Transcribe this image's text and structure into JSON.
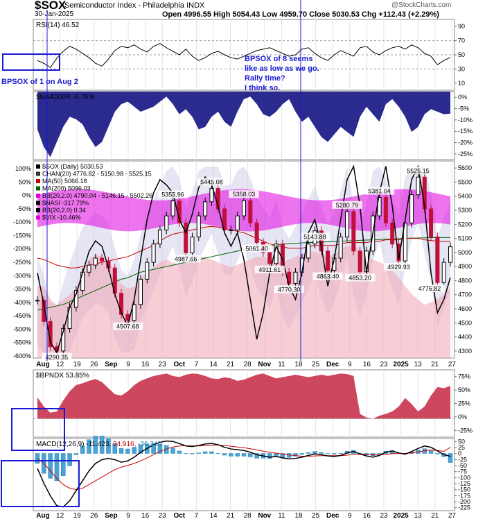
{
  "header": {
    "symbol": "$SOX",
    "name": "Semiconductor Index - Philadelphia INDX",
    "date": "30-Jan-2025",
    "quote": "Open 4996.55   High 5054.43   Low 4959.70   Close 5030.53   Chg +112.43 (+2.29%)",
    "credit": "@StockCharts.com"
  },
  "colors": {
    "rsi_line": "#000000",
    "breadth_fill": "#2b2b8f",
    "bollinger_fill": "#e000e0",
    "price_up": "#000000",
    "price_down": "#c0103a",
    "ma50": "#cc0000",
    "ma200": "#006400",
    "nasi_line": "#000000",
    "vix_fill": "#f3a6b4",
    "bpndx_fill": "#c8344e",
    "macd_line": "#000000",
    "signal_line": "#cc0000",
    "histogram": "#4aa3d6",
    "annotation_box": "#1a1ad6",
    "annotation_text": "#1a1ad6"
  },
  "annotations": {
    "left_note": "BPSOX of 1 on Aug 2",
    "right_note_1": "BPSOX of 8 seems",
    "right_note_2": "like as low as we go.",
    "right_note_3": "Rally time?",
    "right_note_4": "I think so."
  },
  "chart_data": [
    {
      "type": "line",
      "legend": "RSI(14) 46.52",
      "y_ticks": [
        "90",
        "70",
        "50",
        "30",
        "10"
      ],
      "ylim": [
        0,
        100
      ],
      "reference_lines": [
        70,
        50,
        30
      ],
      "values": [
        42,
        38,
        32,
        45,
        55,
        62,
        58,
        52,
        46,
        38,
        34,
        44,
        56,
        62,
        60,
        64,
        58,
        54,
        62,
        66,
        60,
        55,
        50,
        58,
        48,
        42,
        46,
        52,
        55,
        50,
        46,
        44,
        48,
        52,
        56,
        58,
        60,
        56,
        52,
        48,
        50,
        58,
        60,
        52,
        46,
        42,
        50,
        56,
        52,
        48,
        60,
        62,
        54,
        50,
        56,
        60,
        62,
        58,
        64,
        60,
        52,
        48,
        36,
        42,
        46.52
      ]
    },
    {
      "type": "area",
      "legend": "$NAA200R -8.76%",
      "y_ticks": [
        "0%",
        "-5%",
        "-10%",
        "-15%",
        "-20%",
        "-25%"
      ],
      "ylim": [
        -27,
        0
      ],
      "values": [
        -15,
        -22,
        -26,
        -20,
        -14,
        -10,
        -11,
        -13,
        -18,
        -22,
        -20,
        -14,
        -8,
        -5,
        -4,
        -6,
        -8,
        -7,
        -6,
        -4,
        -2,
        -5,
        -9,
        -7,
        -10,
        -15,
        -14,
        -10,
        -8,
        -12,
        -14,
        -8,
        -3,
        -2,
        -5,
        -9,
        -10,
        -8,
        -5,
        -3,
        -8,
        -12,
        -10,
        -14,
        -18,
        -20,
        -17,
        -14,
        -16,
        -18,
        -10,
        -6,
        -9,
        -12,
        -5,
        -3,
        -6,
        -10,
        -16,
        -14,
        -9,
        -7,
        -8,
        -9,
        -8.76
      ]
    },
    {
      "type": "candlestick",
      "legend": [
        "$SOX (Daily) 5030.53",
        "CHAN(20) 4776.82 - 5150.98 - 5525.15",
        "MA(50) 5066.18",
        "MA(200) 5096.03",
        "BB(20,2.0) 4790.04 - 5146.15 - 5502.26",
        "$NASI -317.79%",
        "BB(20,2.0) 0.34",
        "$VIX -10.46%"
      ],
      "y_ticks_left": [
        "100%",
        "50%",
        "0%",
        "-50%",
        "-100%",
        "-150%",
        "-200%",
        "-250%",
        "-300%",
        "-350%",
        "-400%",
        "-450%",
        "-500%",
        "-550%",
        "-600%"
      ],
      "y_ticks_right": [
        "5600",
        "5500",
        "5400",
        "5300",
        "5200",
        "5100",
        "5000",
        "4900",
        "4800",
        "4700",
        "4600",
        "4500",
        "4400",
        "4300"
      ],
      "ylim": [
        4240,
        5640
      ],
      "labels": [
        "4290.35",
        "4507.68",
        "5355.96",
        "4987.66",
        "5445.08",
        "5061.40",
        "5358.03",
        "4911.61",
        "4770.30",
        "5143.88",
        "4863.40",
        "5280.79",
        "4853.20",
        "5381.04",
        "4929.93",
        "5525.15",
        "4776.82"
      ],
      "close": [
        4650,
        4500,
        4320,
        4290,
        4450,
        4600,
        4720,
        4850,
        4900,
        4950,
        4930,
        4880,
        4700,
        4550,
        4507.68,
        4620,
        4800,
        4920,
        5050,
        5150,
        5250,
        5355.96,
        5200,
        4987.66,
        5100,
        5250,
        5350,
        5445.08,
        5300,
        5150,
        5150,
        5250,
        5358.03,
        5200,
        5061.4,
        4990,
        4911.61,
        5050,
        4850,
        4770.3,
        4850,
        4950,
        5050,
        5143.88,
        5000,
        4863.4,
        4950,
        5100,
        5280.79,
        5000,
        4853.2,
        5000,
        5250,
        5381.04,
        5200,
        5050,
        4929.93,
        5200,
        5400,
        5525.15,
        5300,
        5100,
        4776.82,
        4920,
        5030.53
      ],
      "ma50": [
        4950,
        4940,
        4920,
        4900,
        4890,
        4880,
        4880,
        4890,
        4900,
        4910,
        4920,
        4930,
        4940,
        4950,
        4960,
        4980,
        5000,
        5020,
        5040,
        5070,
        5100,
        5120,
        5130,
        5140,
        5150,
        5160,
        5170,
        5175,
        5170,
        5160,
        5150,
        5140,
        5130,
        5110,
        5090,
        5070,
        5050,
        5040,
        5030,
        5020,
        5020,
        5020,
        5030,
        5040,
        5040,
        5040,
        5040,
        5050,
        5060,
        5060,
        5060,
        5060,
        5070,
        5070,
        5080,
        5080,
        5080,
        5090,
        5090,
        5090,
        5080,
        5075,
        5070,
        5068,
        5066.18
      ],
      "ma200": [
        4580,
        4590,
        4600,
        4610,
        4620,
        4640,
        4660,
        4680,
        4700,
        4720,
        4740,
        4760,
        4780,
        4800,
        4810,
        4830,
        4850,
        4860,
        4870,
        4880,
        4890,
        4900,
        4910,
        4920,
        4930,
        4940,
        4950,
        4960,
        4970,
        4980,
        4990,
        5000,
        5010,
        5020,
        5030,
        5035,
        5040,
        5045,
        5050,
        5052,
        5055,
        5058,
        5060,
        5062,
        5064,
        5066,
        5068,
        5070,
        5072,
        5074,
        5076,
        5078,
        5080,
        5082,
        5084,
        5086,
        5088,
        5090,
        5092,
        5093,
        5094,
        5095,
        5095,
        5096,
        5096.03
      ],
      "nasi": [
        -300,
        -420,
        -560,
        -600,
        -520,
        -430,
        -380,
        -300,
        -220,
        -180,
        -200,
        -280,
        -380,
        -450,
        -500,
        -400,
        -250,
        -100,
        0,
        50,
        30,
        0,
        -100,
        -150,
        -80,
        20,
        60,
        30,
        -50,
        -150,
        -200,
        -150,
        -250,
        -400,
        -550,
        -450,
        -300,
        -200,
        -250,
        -350,
        -400,
        -300,
        -150,
        -100,
        -200,
        -350,
        -250,
        -100,
        50,
        100,
        -50,
        -300,
        -150,
        0,
        100,
        -50,
        -250,
        -100,
        50,
        100,
        -50,
        -300,
        -450,
        -400,
        -317.79
      ],
      "vix_upper": [
        -350,
        -350,
        -400,
        -420,
        -400,
        -380,
        -360,
        -300,
        -250,
        -230,
        -240,
        -260,
        -300,
        -340,
        -360,
        -350,
        -320,
        -300,
        -280,
        -260,
        -250,
        -260,
        -270,
        -260,
        -250,
        -240,
        -240,
        -250,
        -260,
        -270,
        -280,
        -270,
        -260,
        -250,
        -240,
        -240,
        -250,
        -260,
        -260,
        -250,
        -240,
        -230,
        -220,
        -220,
        -230,
        -240,
        -230,
        -210,
        -200,
        -200,
        -210,
        -240,
        -250,
        -260,
        -270,
        -290,
        -320,
        -350,
        -380,
        -400,
        -420,
        -410,
        -400,
        -380,
        -360
      ]
    },
    {
      "type": "area",
      "legend": "$BPNDX 53.85%",
      "y_ticks": [
        "75%",
        "50%",
        "25%",
        "0%",
        "-25%"
      ],
      "ylim": [
        -30,
        80
      ],
      "values": [
        35,
        20,
        10,
        12,
        30,
        45,
        55,
        58,
        62,
        65,
        60,
        50,
        40,
        38,
        45,
        55,
        62,
        66,
        70,
        72,
        74,
        70,
        68,
        72,
        74,
        73,
        70,
        66,
        65,
        68,
        66,
        62,
        64,
        68,
        72,
        74,
        70,
        66,
        68,
        70,
        72,
        70,
        68,
        70,
        72,
        70,
        72,
        74,
        73,
        70,
        8,
        2,
        0,
        5,
        8,
        12,
        20,
        34,
        24,
        12,
        20,
        38,
        52,
        50,
        53.85
      ]
    },
    {
      "type": "line",
      "legend": [
        "MACD(12,26,9)",
        "-11.423",
        "24.916",
        "-36.340"
      ],
      "y_ticks": [
        "50",
        "25",
        "0",
        "-25",
        "-50",
        "-75",
        "-100",
        "-125",
        "-150",
        "-175",
        "-200",
        "-225"
      ],
      "ylim": [
        -230,
        60
      ],
      "macd": [
        -60,
        -120,
        -170,
        -210,
        -215,
        -190,
        -150,
        -110,
        -70,
        -40,
        -25,
        -20,
        -25,
        -35,
        -30,
        -15,
        5,
        20,
        35,
        45,
        50,
        48,
        40,
        30,
        28,
        32,
        38,
        40,
        35,
        25,
        18,
        15,
        12,
        5,
        -5,
        -10,
        -15,
        -12,
        -18,
        -22,
        -20,
        -15,
        -8,
        -2,
        -5,
        -10,
        -12,
        -8,
        2,
        8,
        -2,
        -10,
        -15,
        -8,
        5,
        10,
        2,
        -3,
        8,
        20,
        30,
        24.9,
        10,
        -5,
        -11.423
      ],
      "signal": [
        -20,
        -40,
        -70,
        -100,
        -125,
        -140,
        -145,
        -140,
        -125,
        -110,
        -95,
        -80,
        -65,
        -55,
        -48,
        -40,
        -30,
        -18,
        -5,
        8,
        18,
        26,
        30,
        31,
        30,
        30,
        31,
        33,
        34,
        32,
        29,
        26,
        23,
        19,
        14,
        9,
        5,
        1,
        -2,
        -6,
        -9,
        -11,
        -11,
        -10,
        -9,
        -9,
        -9,
        -9,
        -7,
        -4,
        -3,
        -4,
        -6,
        -6,
        -4,
        -1,
        0,
        0,
        2,
        6,
        11,
        14,
        12,
        8,
        24.916
      ]
    }
  ],
  "x_axis": [
    "Aug",
    "12",
    "19",
    "26",
    "Sep",
    "9",
    "16",
    "23",
    "Oct",
    "7",
    "14",
    "21",
    "28",
    "Nov",
    "11",
    "18",
    "25",
    "Dec",
    "9",
    "16",
    "23",
    "2025",
    "13",
    "21",
    "27"
  ]
}
